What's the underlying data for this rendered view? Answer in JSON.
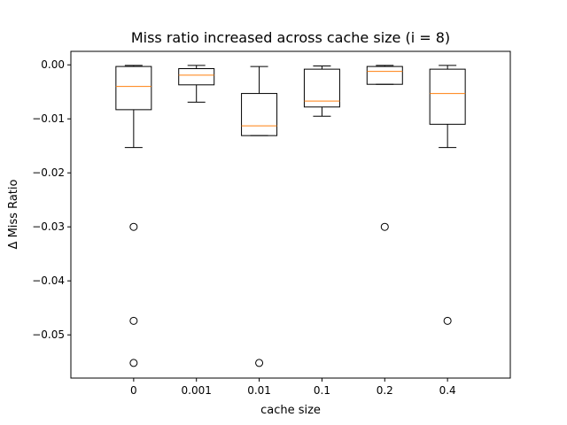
{
  "chart_data": {
    "type": "box",
    "title": "Miss ratio increased across cache size (i = 8)",
    "xlabel": "cache size",
    "ylabel": "Δ Miss Ratio",
    "ylim": [
      -0.058,
      0.0025
    ],
    "yticks": [
      0.0,
      -0.01,
      -0.02,
      -0.03,
      -0.04,
      -0.05
    ],
    "ytick_labels": [
      "0.00",
      "−0.01",
      "−0.02",
      "−0.03",
      "−0.04",
      "−0.05"
    ],
    "categories": [
      "0",
      "0.001",
      "0.01",
      "0.1",
      "0.2",
      "0.4"
    ],
    "boxes": [
      {
        "whisker_high": -0.0001,
        "q3": -0.0003,
        "median": -0.004,
        "q1": -0.0083,
        "whisker_low": -0.0153,
        "outliers": [
          -0.03,
          -0.0474,
          -0.0552
        ]
      },
      {
        "whisker_high": -0.0001,
        "q3": -0.0007,
        "median": -0.0019,
        "q1": -0.0037,
        "whisker_low": -0.0069,
        "outliers": []
      },
      {
        "whisker_high": -0.0003,
        "q3": -0.0053,
        "median": -0.0113,
        "q1": -0.0131,
        "whisker_low": -0.0131,
        "outliers": [
          -0.0552
        ]
      },
      {
        "whisker_high": -0.0002,
        "q3": -0.0008,
        "median": -0.0067,
        "q1": -0.0078,
        "whisker_low": -0.0095,
        "outliers": []
      },
      {
        "whisker_high": -0.0001,
        "q3": -0.0003,
        "median": -0.0012,
        "q1": -0.0036,
        "whisker_low": -0.0036,
        "outliers": [
          -0.03
        ]
      },
      {
        "whisker_high": -0.0001,
        "q3": -0.0008,
        "median": -0.0053,
        "q1": -0.011,
        "whisker_low": -0.0153,
        "outliers": [
          -0.0474
        ]
      }
    ],
    "grid": false,
    "colors": {
      "box": "#000000",
      "median": "#ff7f0e"
    }
  }
}
